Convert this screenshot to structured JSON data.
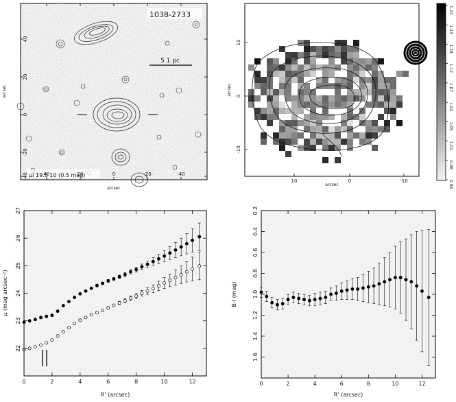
{
  "panels": {
    "top_left": {
      "type": "contour-image",
      "label_id": "1038-2733",
      "scale_label": "5 1 pc",
      "footer_label": "μI 19.5 10 (0.5 mag)",
      "x_ticks": [
        "40",
        "20",
        "0",
        "-20",
        "-40"
      ],
      "y_ticks": [
        "40",
        "20",
        "0",
        "-20",
        "-40"
      ],
      "xlabel": "arcsec",
      "ylabel": "arcsec"
    },
    "top_right": {
      "type": "color-map",
      "x_ticks": [
        "10",
        "0",
        "-10"
      ],
      "y_ticks": [
        "10",
        "0",
        "-10"
      ],
      "xlabel": "arcsec",
      "ylabel": "arcsec",
      "colorbar_ticks": [
        "1.27",
        "1.23",
        "1.18",
        "1.12",
        "1.07",
        "1.02",
        "1.05",
        "1.01",
        "0.98",
        "0.94"
      ]
    }
  },
  "chart_data": [
    {
      "type": "scatter",
      "xlabel": "R' (arcsec)",
      "ylabel": "μ (mag arcsec⁻²)",
      "xlim": [
        0,
        13
      ],
      "ylim": [
        27,
        21
      ],
      "x_ticks": [
        0,
        2,
        4,
        6,
        8,
        10,
        12
      ],
      "y_ticks": [
        22,
        23,
        24,
        25,
        26,
        27
      ],
      "series": [
        {
          "marker": "open",
          "x": [
            0.0,
            0.4,
            0.8,
            1.2,
            1.6,
            2.0,
            2.4,
            2.8,
            3.2,
            3.6,
            4.0,
            4.4,
            4.8,
            5.2,
            5.6,
            6.0,
            6.4,
            6.8,
            7.2,
            7.6,
            8.0,
            8.4,
            8.8,
            9.2,
            9.6,
            10.0,
            10.4,
            10.8,
            11.2,
            11.6,
            12.0,
            12.5
          ],
          "y": [
            21.95,
            22.0,
            22.05,
            22.12,
            22.2,
            22.3,
            22.45,
            22.6,
            22.75,
            22.9,
            23.02,
            23.12,
            23.22,
            23.3,
            23.38,
            23.47,
            23.56,
            23.65,
            23.73,
            23.82,
            23.9,
            24.0,
            24.08,
            24.17,
            24.27,
            24.37,
            24.47,
            24.57,
            24.67,
            24.78,
            24.88,
            24.99
          ],
          "err": [
            0.02,
            0.02,
            0.02,
            0.02,
            0.02,
            0.02,
            0.02,
            0.02,
            0.02,
            0.03,
            0.03,
            0.03,
            0.03,
            0.04,
            0.04,
            0.05,
            0.05,
            0.06,
            0.07,
            0.08,
            0.09,
            0.1,
            0.12,
            0.14,
            0.17,
            0.2,
            0.23,
            0.27,
            0.32,
            0.37,
            0.43,
            0.5
          ]
        },
        {
          "marker": "filled",
          "x": [
            0.0,
            0.4,
            0.8,
            1.2,
            1.6,
            2.0,
            2.4,
            2.8,
            3.2,
            3.6,
            4.0,
            4.4,
            4.8,
            5.2,
            5.6,
            6.0,
            6.4,
            6.8,
            7.2,
            7.6,
            8.0,
            8.4,
            8.8,
            9.2,
            9.6,
            10.0,
            10.4,
            10.8,
            11.2,
            11.6,
            12.0,
            12.5
          ],
          "y": [
            22.95,
            23.0,
            23.05,
            23.12,
            23.16,
            23.2,
            23.35,
            23.55,
            23.7,
            23.85,
            23.98,
            24.08,
            24.18,
            24.28,
            24.36,
            24.45,
            24.52,
            24.6,
            24.68,
            24.78,
            24.86,
            24.96,
            25.05,
            25.15,
            25.25,
            25.35,
            25.46,
            25.57,
            25.68,
            25.8,
            25.92,
            26.05
          ],
          "err": [
            0.02,
            0.02,
            0.02,
            0.02,
            0.02,
            0.02,
            0.02,
            0.02,
            0.02,
            0.03,
            0.03,
            0.03,
            0.03,
            0.04,
            0.04,
            0.05,
            0.05,
            0.06,
            0.07,
            0.08,
            0.09,
            0.1,
            0.12,
            0.14,
            0.17,
            0.2,
            0.23,
            0.27,
            0.32,
            0.37,
            0.43,
            0.5
          ]
        }
      ]
    },
    {
      "type": "scatter",
      "xlabel": "R' (arcsec)",
      "ylabel": "B-I (mag)",
      "xlim": [
        0,
        13
      ],
      "ylim": [
        0.2,
        1.8
      ],
      "x_ticks": [
        0,
        2,
        4,
        6,
        8,
        10,
        12
      ],
      "y_ticks": [
        0.2,
        0.4,
        0.6,
        0.8,
        1.0,
        1.2,
        1.4,
        1.6
      ],
      "series": [
        {
          "marker": "filled",
          "x": [
            0.0,
            0.4,
            0.8,
            1.2,
            1.6,
            2.0,
            2.4,
            2.8,
            3.2,
            3.6,
            4.0,
            4.4,
            4.8,
            5.2,
            5.6,
            6.0,
            6.4,
            6.8,
            7.2,
            7.6,
            8.0,
            8.4,
            8.8,
            9.2,
            9.6,
            10.0,
            10.4,
            10.8,
            11.2,
            11.6,
            12.0,
            12.5
          ],
          "y": [
            0.98,
            1.02,
            1.08,
            1.1,
            1.09,
            1.05,
            1.03,
            1.04,
            1.05,
            1.06,
            1.05,
            1.04,
            1.03,
            1.0,
            0.99,
            0.97,
            0.96,
            0.95,
            0.95,
            0.94,
            0.93,
            0.92,
            0.9,
            0.88,
            0.86,
            0.84,
            0.84,
            0.86,
            0.88,
            0.92,
            0.97,
            1.03
          ],
          "err": [
            0.05,
            0.05,
            0.05,
            0.05,
            0.05,
            0.05,
            0.05,
            0.05,
            0.05,
            0.05,
            0.06,
            0.06,
            0.06,
            0.06,
            0.07,
            0.08,
            0.09,
            0.1,
            0.11,
            0.13,
            0.15,
            0.17,
            0.2,
            0.23,
            0.26,
            0.3,
            0.34,
            0.39,
            0.45,
            0.52,
            0.58,
            0.65
          ]
        }
      ]
    }
  ]
}
